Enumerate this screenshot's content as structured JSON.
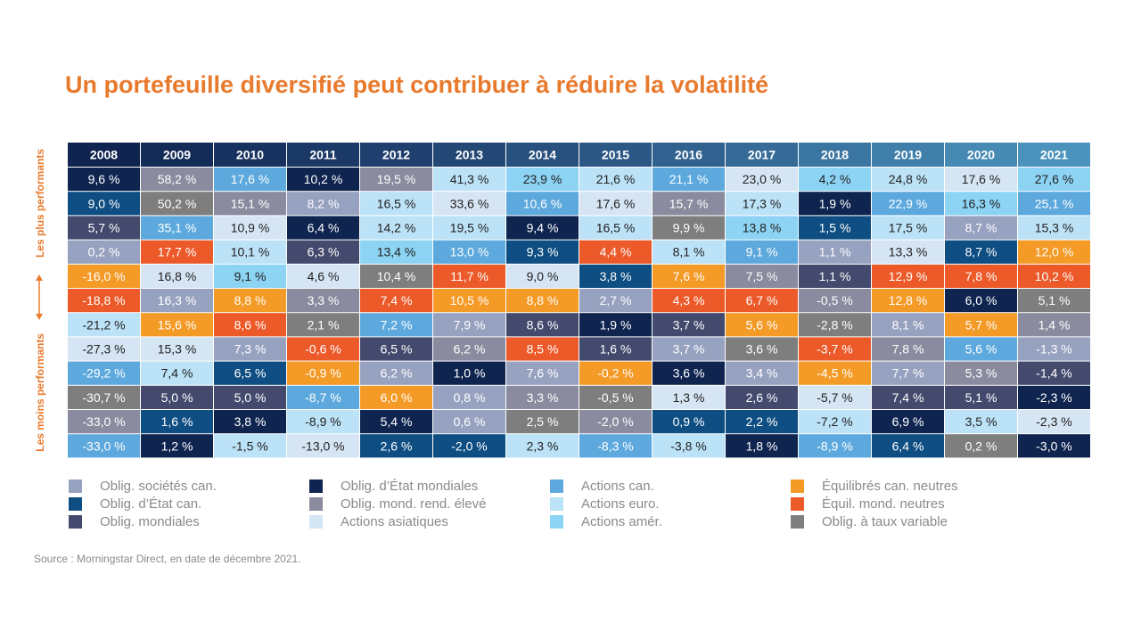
{
  "title": "Un portefeuille diversifié peut contribuer à réduire la volatilité",
  "side_label": {
    "top": "Les plus performants",
    "bottom": "Les moins performants"
  },
  "source": "Source : Morningstar Direct, en date de décembre 2021.",
  "colors": {
    "corp_can": "#97A2C0",
    "etat_can": "#0E4E82",
    "mondiales": "#444A6D",
    "etat_mond": "#0F2550",
    "rend_eleve": "#8A8B9E",
    "asiatiques": "#D5E5F4",
    "actions_can": "#5DA9DD",
    "actions_euro": "#BCE2F7",
    "actions_amer": "#8CD3F4",
    "equil_can": "#F49A27",
    "equil_mond": "#EC5A2A",
    "taux_var": "#7E7E7E"
  },
  "legend": [
    {
      "key": "corp_can",
      "label": "Oblig. sociétés can."
    },
    {
      "key": "etat_can",
      "label": "Oblig. d’État can."
    },
    {
      "key": "mondiales",
      "label": "Oblig. mondiales"
    },
    {
      "key": "etat_mond",
      "label": "Oblig. d’État mondiales"
    },
    {
      "key": "rend_eleve",
      "label": "Oblig. mond. rend. élevé"
    },
    {
      "key": "asiatiques",
      "label": "Actions asiatiques"
    },
    {
      "key": "actions_can",
      "label": "Actions can."
    },
    {
      "key": "actions_euro",
      "label": "Actions euro."
    },
    {
      "key": "actions_amer",
      "label": "Actions amér."
    },
    {
      "key": "equil_can",
      "label": "Équilibrés can. neutres"
    },
    {
      "key": "equil_mond",
      "label": "Équil. mond. neutres"
    },
    {
      "key": "taux_var",
      "label": "Oblig. à taux variable"
    }
  ],
  "chart_data": {
    "type": "table",
    "title": "Un portefeuille diversifié peut contribuer à réduire la volatilité",
    "years": [
      "2008",
      "2009",
      "2010",
      "2011",
      "2012",
      "2013",
      "2014",
      "2015",
      "2016",
      "2017",
      "2018",
      "2019",
      "2020",
      "2021"
    ],
    "columns": [
      {
        "year": "2008",
        "cells": [
          {
            "value": "9,6 %",
            "series": "etat_mond"
          },
          {
            "value": "9,0 %",
            "series": "etat_can"
          },
          {
            "value": "5,7 %",
            "series": "mondiales"
          },
          {
            "value": "0,2 %",
            "series": "corp_can"
          },
          {
            "value": "-16,0 %",
            "series": "equil_can"
          },
          {
            "value": "-18,8 %",
            "series": "equil_mond"
          },
          {
            "value": "-21,2 %",
            "series": "actions_euro"
          },
          {
            "value": "-27,3 %",
            "series": "asiatiques"
          },
          {
            "value": "-29,2 %",
            "series": "actions_can"
          },
          {
            "value": "-30,7 %",
            "series": "taux_var"
          },
          {
            "value": "-33,0 %",
            "series": "rend_eleve"
          },
          {
            "value": "-33,0 %",
            "series": "actions_can"
          }
        ]
      },
      {
        "year": "2009",
        "cells": [
          {
            "value": "58,2 %",
            "series": "rend_eleve"
          },
          {
            "value": "50,2 %",
            "series": "taux_var"
          },
          {
            "value": "35,1 %",
            "series": "actions_can"
          },
          {
            "value": "17,7 %",
            "series": "equil_mond"
          },
          {
            "value": "16,8 %",
            "series": "asiatiques"
          },
          {
            "value": "16,3 %",
            "series": "corp_can"
          },
          {
            "value": "15,6 %",
            "series": "equil_can"
          },
          {
            "value": "15,3 %",
            "series": "asiatiques"
          },
          {
            "value": "7,4 %",
            "series": "actions_euro"
          },
          {
            "value": "5,0 %",
            "series": "mondiales"
          },
          {
            "value": "1,6 %",
            "series": "etat_can"
          },
          {
            "value": "1,2 %",
            "series": "etat_mond"
          }
        ]
      },
      {
        "year": "2010",
        "cells": [
          {
            "value": "17,6 %",
            "series": "actions_can"
          },
          {
            "value": "15,1 %",
            "series": "rend_eleve"
          },
          {
            "value": "10,9 %",
            "series": "asiatiques"
          },
          {
            "value": "10,1 %",
            "series": "actions_euro"
          },
          {
            "value": "9,1 %",
            "series": "actions_amer"
          },
          {
            "value": "8,8 %",
            "series": "equil_can"
          },
          {
            "value": "8,6 %",
            "series": "equil_mond"
          },
          {
            "value": "7,3 %",
            "series": "corp_can"
          },
          {
            "value": "6,5 %",
            "series": "etat_can"
          },
          {
            "value": "5,0 %",
            "series": "mondiales"
          },
          {
            "value": "3,8 %",
            "series": "etat_mond"
          },
          {
            "value": "-1,5 %",
            "series": "actions_euro"
          }
        ]
      },
      {
        "year": "2011",
        "cells": [
          {
            "value": "10,2 %",
            "series": "etat_mond"
          },
          {
            "value": "8,2 %",
            "series": "corp_can"
          },
          {
            "value": "6,4 %",
            "series": "etat_mond"
          },
          {
            "value": "6,3 %",
            "series": "mondiales"
          },
          {
            "value": "4,6 %",
            "series": "asiatiques"
          },
          {
            "value": "3,3 %",
            "series": "rend_eleve"
          },
          {
            "value": "2,1 %",
            "series": "taux_var"
          },
          {
            "value": "-0,6 %",
            "series": "equil_mond"
          },
          {
            "value": "-0,9 %",
            "series": "equil_can"
          },
          {
            "value": "-8,7 %",
            "series": "actions_can"
          },
          {
            "value": "-8,9 %",
            "series": "actions_euro"
          },
          {
            "value": "-13,0 %",
            "series": "asiatiques"
          }
        ]
      },
      {
        "year": "2012",
        "cells": [
          {
            "value": "19,5 %",
            "series": "rend_eleve"
          },
          {
            "value": "16,5 %",
            "series": "actions_euro"
          },
          {
            "value": "14,2 %",
            "series": "actions_euro"
          },
          {
            "value": "13,4 %",
            "series": "actions_amer"
          },
          {
            "value": "10,4 %",
            "series": "taux_var"
          },
          {
            "value": "7,4 %",
            "series": "equil_mond"
          },
          {
            "value": "7,2 %",
            "series": "actions_can"
          },
          {
            "value": "6,5 %",
            "series": "mondiales"
          },
          {
            "value": "6,2 %",
            "series": "corp_can"
          },
          {
            "value": "6,0 %",
            "series": "equil_can"
          },
          {
            "value": "5,4 %",
            "series": "etat_mond"
          },
          {
            "value": "2,6 %",
            "series": "etat_can"
          }
        ]
      },
      {
        "year": "2013",
        "cells": [
          {
            "value": "41,3 %",
            "series": "actions_euro"
          },
          {
            "value": "33,6 %",
            "series": "asiatiques"
          },
          {
            "value": "19,5 %",
            "series": "actions_euro"
          },
          {
            "value": "13,0 %",
            "series": "actions_can"
          },
          {
            "value": "11,7 %",
            "series": "equil_mond"
          },
          {
            "value": "10,5 %",
            "series": "equil_can"
          },
          {
            "value": "7,9 %",
            "series": "corp_can"
          },
          {
            "value": "6,2 %",
            "series": "rend_eleve"
          },
          {
            "value": "1,0 %",
            "series": "etat_mond"
          },
          {
            "value": "0,8 %",
            "series": "corp_can"
          },
          {
            "value": "0,6 %",
            "series": "corp_can"
          },
          {
            "value": "-2,0 %",
            "series": "etat_can"
          }
        ]
      },
      {
        "year": "2014",
        "cells": [
          {
            "value": "23,9 %",
            "series": "actions_amer"
          },
          {
            "value": "10,6 %",
            "series": "actions_can"
          },
          {
            "value": "9,4 %",
            "series": "etat_mond"
          },
          {
            "value": "9,3 %",
            "series": "etat_can"
          },
          {
            "value": "9,0 %",
            "series": "asiatiques"
          },
          {
            "value": "8,8 %",
            "series": "equil_can"
          },
          {
            "value": "8,6 %",
            "series": "mondiales"
          },
          {
            "value": "8,5 %",
            "series": "equil_mond"
          },
          {
            "value": "7,6 %",
            "series": "corp_can"
          },
          {
            "value": "3,3 %",
            "series": "rend_eleve"
          },
          {
            "value": "2,5 %",
            "series": "taux_var"
          },
          {
            "value": "2,3 %",
            "series": "actions_euro"
          }
        ]
      },
      {
        "year": "2015",
        "cells": [
          {
            "value": "21,6 %",
            "series": "actions_euro"
          },
          {
            "value": "17,6 %",
            "series": "asiatiques"
          },
          {
            "value": "16,5 %",
            "series": "actions_euro"
          },
          {
            "value": "4,4 %",
            "series": "equil_mond"
          },
          {
            "value": "3,8 %",
            "series": "etat_can"
          },
          {
            "value": "2,7 %",
            "series": "corp_can"
          },
          {
            "value": "1,9 %",
            "series": "etat_mond"
          },
          {
            "value": "1,6 %",
            "series": "mondiales"
          },
          {
            "value": "-0,2 %",
            "series": "equil_can"
          },
          {
            "value": "-0,5 %",
            "series": "taux_var"
          },
          {
            "value": "-2,0 %",
            "series": "rend_eleve"
          },
          {
            "value": "-8,3 %",
            "series": "actions_can"
          }
        ]
      },
      {
        "year": "2016",
        "cells": [
          {
            "value": "21,1 %",
            "series": "actions_can"
          },
          {
            "value": "15,7 %",
            "series": "rend_eleve"
          },
          {
            "value": "9,9 %",
            "series": "taux_var"
          },
          {
            "value": "8,1 %",
            "series": "actions_euro"
          },
          {
            "value": "7,6 %",
            "series": "equil_can"
          },
          {
            "value": "4,3 %",
            "series": "equil_mond"
          },
          {
            "value": "3,7 %",
            "series": "mondiales"
          },
          {
            "value": "3,7 %",
            "series": "corp_can"
          },
          {
            "value": "3,6 %",
            "series": "etat_mond"
          },
          {
            "value": "1,3 %",
            "series": "asiatiques"
          },
          {
            "value": "0,9 %",
            "series": "etat_can"
          },
          {
            "value": "-3,8 %",
            "series": "actions_euro"
          }
        ]
      },
      {
        "year": "2017",
        "cells": [
          {
            "value": "23,0 %",
            "series": "asiatiques"
          },
          {
            "value": "17,3 %",
            "series": "actions_euro"
          },
          {
            "value": "13,8 %",
            "series": "actions_amer"
          },
          {
            "value": "9,1 %",
            "series": "actions_can"
          },
          {
            "value": "7,5 %",
            "series": "rend_eleve"
          },
          {
            "value": "6,7 %",
            "series": "equil_mond"
          },
          {
            "value": "5,6 %",
            "series": "equil_can"
          },
          {
            "value": "3,6 %",
            "series": "taux_var"
          },
          {
            "value": "3,4 %",
            "series": "corp_can"
          },
          {
            "value": "2,6 %",
            "series": "mondiales"
          },
          {
            "value": "2,2 %",
            "series": "etat_can"
          },
          {
            "value": "1,8 %",
            "series": "etat_mond"
          }
        ]
      },
      {
        "year": "2018",
        "cells": [
          {
            "value": "4,2 %",
            "series": "actions_amer"
          },
          {
            "value": "1,9 %",
            "series": "etat_mond"
          },
          {
            "value": "1,5 %",
            "series": "etat_can"
          },
          {
            "value": "1,1 %",
            "series": "corp_can"
          },
          {
            "value": "1,1 %",
            "series": "mondiales"
          },
          {
            "value": "-0,5 %",
            "series": "rend_eleve"
          },
          {
            "value": "-2,8 %",
            "series": "taux_var"
          },
          {
            "value": "-3,7 %",
            "series": "equil_mond"
          },
          {
            "value": "-4,5 %",
            "series": "equil_can"
          },
          {
            "value": "-5,7 %",
            "series": "asiatiques"
          },
          {
            "value": "-7,2 %",
            "series": "actions_euro"
          },
          {
            "value": "-8,9 %",
            "series": "actions_can"
          }
        ]
      },
      {
        "year": "2019",
        "cells": [
          {
            "value": "24,8 %",
            "series": "actions_euro"
          },
          {
            "value": "22,9 %",
            "series": "actions_can"
          },
          {
            "value": "17,5 %",
            "series": "actions_euro"
          },
          {
            "value": "13,3 %",
            "series": "asiatiques"
          },
          {
            "value": "12,9 %",
            "series": "equil_mond"
          },
          {
            "value": "12,8 %",
            "series": "equil_can"
          },
          {
            "value": "8,1 %",
            "series": "corp_can"
          },
          {
            "value": "7,8 %",
            "series": "rend_eleve"
          },
          {
            "value": "7,7 %",
            "series": "corp_can"
          },
          {
            "value": "7,4 %",
            "series": "mondiales"
          },
          {
            "value": "6,9 %",
            "series": "etat_mond"
          },
          {
            "value": "6,4 %",
            "series": "etat_can"
          }
        ]
      },
      {
        "year": "2020",
        "cells": [
          {
            "value": "17,6 %",
            "series": "asiatiques"
          },
          {
            "value": "16,3 %",
            "series": "actions_amer"
          },
          {
            "value": "8,7 %",
            "series": "corp_can"
          },
          {
            "value": "8,7 %",
            "series": "etat_can"
          },
          {
            "value": "7,8 %",
            "series": "equil_mond"
          },
          {
            "value": "6,0 %",
            "series": "etat_mond"
          },
          {
            "value": "5,7 %",
            "series": "equil_can"
          },
          {
            "value": "5,6 %",
            "series": "actions_can"
          },
          {
            "value": "5,3 %",
            "series": "rend_eleve"
          },
          {
            "value": "5,1 %",
            "series": "mondiales"
          },
          {
            "value": "3,5 %",
            "series": "actions_euro"
          },
          {
            "value": "0,2 %",
            "series": "taux_var"
          }
        ]
      },
      {
        "year": "2021",
        "cells": [
          {
            "value": "27,6 %",
            "series": "actions_amer"
          },
          {
            "value": "25,1 %",
            "series": "actions_can"
          },
          {
            "value": "15,3 %",
            "series": "actions_euro"
          },
          {
            "value": "12,0 %",
            "series": "equil_can"
          },
          {
            "value": "10,2 %",
            "series": "equil_mond"
          },
          {
            "value": "5,1 %",
            "series": "taux_var"
          },
          {
            "value": "1,4 %",
            "series": "rend_eleve"
          },
          {
            "value": "-1,3 %",
            "series": "corp_can"
          },
          {
            "value": "-1,4 %",
            "series": "mondiales"
          },
          {
            "value": "-2,3 %",
            "series": "etat_mond"
          },
          {
            "value": "-2,3 %",
            "series": "asiatiques"
          },
          {
            "value": "-3,0 %",
            "series": "etat_mond"
          }
        ]
      }
    ]
  }
}
